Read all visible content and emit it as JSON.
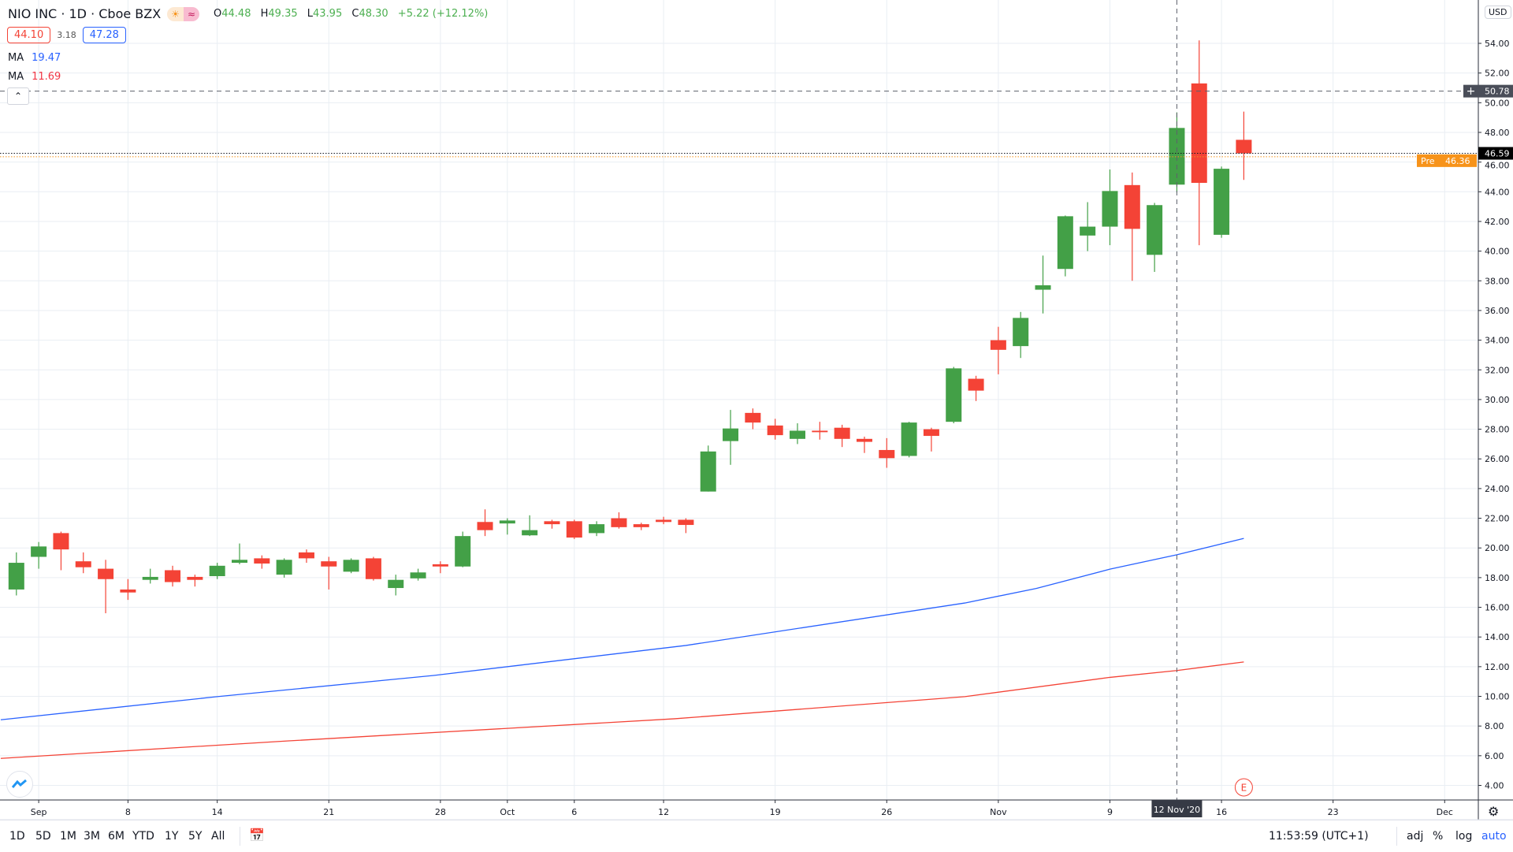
{
  "header": {
    "title": "NIO INC · 1D · Cboe BZX",
    "status_icons": [
      "sun-icon",
      "approx-icon"
    ],
    "ohlc": {
      "o_label": "O",
      "o": "44.48",
      "h_label": "H",
      "h": "49.35",
      "l_label": "L",
      "l": "43.95",
      "c_label": "C",
      "c": "48.30",
      "change": "+5.22 (+12.12%)"
    },
    "bid": "44.10",
    "spread": "3.18",
    "ask": "47.28",
    "ma1": {
      "label": "MA",
      "value": "19.47",
      "color": "#2962ff"
    },
    "ma2": {
      "label": "MA",
      "value": "11.69",
      "color": "#f23645"
    }
  },
  "colors": {
    "up": "#43a047",
    "down": "#f44336",
    "ma1": "#2962ff",
    "ma2": "#f44336",
    "pre": "#f7931a"
  },
  "price_axis": {
    "currency": "USD",
    "ticks": [
      "4.00",
      "6.00",
      "8.00",
      "10.00",
      "12.00",
      "14.00",
      "16.00",
      "18.00",
      "20.00",
      "22.00",
      "24.00",
      "26.00",
      "28.00",
      "30.00",
      "32.00",
      "34.00",
      "36.00",
      "38.00",
      "40.00",
      "42.00",
      "44.00",
      "46.00",
      "48.00",
      "50.00",
      "52.00",
      "54.00"
    ],
    "crosshair_price": "50.78",
    "last_price": "46.59",
    "pre_label": "Pre",
    "pre_price": "46.36"
  },
  "time_axis": {
    "labels": [
      {
        "text": "Sep",
        "bar": 1
      },
      {
        "text": "8",
        "bar": 5
      },
      {
        "text": "14",
        "bar": 9
      },
      {
        "text": "21",
        "bar": 14
      },
      {
        "text": "28",
        "bar": 19
      },
      {
        "text": "Oct",
        "bar": 22
      },
      {
        "text": "6",
        "bar": 25
      },
      {
        "text": "12",
        "bar": 29
      },
      {
        "text": "19",
        "bar": 34
      },
      {
        "text": "26",
        "bar": 39
      },
      {
        "text": "Nov",
        "bar": 44
      },
      {
        "text": "9",
        "bar": 49
      },
      {
        "text": "16",
        "bar": 54
      },
      {
        "text": "23",
        "bar": 59
      },
      {
        "text": "Dec",
        "bar": 64
      }
    ],
    "crosshair_label": "12 Nov '20",
    "crosshair_bar": 52
  },
  "chart_data": {
    "type": "candlestick",
    "ylim": [
      3,
      56
    ],
    "candles": [
      [
        17.2,
        19.7,
        16.8,
        19.0
      ],
      [
        19.4,
        20.4,
        18.6,
        20.1
      ],
      [
        21.0,
        21.1,
        18.5,
        19.9
      ],
      [
        19.1,
        19.7,
        18.3,
        18.7
      ],
      [
        18.6,
        19.2,
        15.6,
        17.9
      ],
      [
        17.2,
        17.9,
        16.5,
        17.0
      ],
      [
        17.85,
        18.6,
        17.6,
        18.05
      ],
      [
        18.5,
        18.8,
        17.4,
        17.7
      ],
      [
        18.05,
        18.2,
        17.4,
        17.85
      ],
      [
        18.1,
        19.0,
        17.9,
        18.8
      ],
      [
        19.0,
        20.3,
        18.9,
        19.2
      ],
      [
        19.3,
        19.5,
        18.6,
        18.95
      ],
      [
        18.2,
        19.3,
        18.0,
        19.2
      ],
      [
        19.7,
        19.9,
        19.0,
        19.3
      ],
      [
        19.1,
        19.4,
        17.2,
        18.75
      ],
      [
        18.4,
        19.3,
        18.3,
        19.2
      ],
      [
        19.3,
        19.4,
        17.8,
        17.9
      ],
      [
        17.3,
        18.2,
        16.8,
        17.85
      ],
      [
        17.95,
        18.6,
        17.8,
        18.35
      ],
      [
        18.9,
        19.1,
        18.3,
        18.75
      ],
      [
        18.75,
        21.1,
        18.7,
        20.8
      ],
      [
        21.75,
        22.6,
        20.8,
        21.2
      ],
      [
        21.65,
        22.0,
        20.9,
        21.85
      ],
      [
        20.85,
        22.2,
        20.8,
        21.2
      ],
      [
        21.8,
        21.9,
        21.3,
        21.6
      ],
      [
        21.8,
        21.9,
        20.6,
        20.7
      ],
      [
        21.0,
        21.8,
        20.8,
        21.6
      ],
      [
        22.0,
        22.4,
        21.3,
        21.4
      ],
      [
        21.6,
        21.7,
        21.2,
        21.4
      ],
      [
        21.9,
        22.1,
        21.6,
        21.75
      ],
      [
        21.9,
        22.0,
        21.0,
        21.55
      ],
      [
        23.8,
        26.9,
        23.8,
        26.5
      ],
      [
        27.2,
        29.3,
        25.6,
        28.05
      ],
      [
        29.1,
        29.4,
        28.0,
        28.45
      ],
      [
        28.25,
        28.7,
        27.3,
        27.6
      ],
      [
        27.35,
        28.4,
        27.0,
        27.9
      ],
      [
        27.9,
        28.5,
        27.3,
        27.8
      ],
      [
        28.1,
        28.3,
        26.8,
        27.35
      ],
      [
        27.35,
        27.5,
        26.4,
        27.15
      ],
      [
        26.6,
        27.4,
        25.4,
        26.05
      ],
      [
        26.2,
        28.5,
        26.1,
        28.45
      ],
      [
        28.0,
        28.1,
        26.5,
        27.55
      ],
      [
        28.5,
        32.2,
        28.4,
        32.1
      ],
      [
        31.4,
        31.6,
        29.9,
        30.6
      ],
      [
        34.0,
        34.9,
        31.7,
        33.35
      ],
      [
        33.6,
        35.9,
        32.8,
        35.5
      ],
      [
        37.4,
        39.7,
        35.8,
        37.7
      ],
      [
        38.8,
        42.4,
        38.3,
        42.35
      ],
      [
        41.05,
        43.3,
        40.0,
        41.65
      ],
      [
        41.65,
        45.5,
        40.4,
        44.05
      ],
      [
        44.45,
        45.3,
        38.0,
        41.5
      ],
      [
        39.75,
        43.25,
        38.6,
        43.1
      ],
      [
        44.48,
        49.35,
        43.95,
        48.3
      ],
      [
        51.3,
        54.2,
        40.4,
        44.6
      ],
      [
        41.1,
        45.7,
        40.9,
        45.55
      ],
      [
        47.5,
        49.4,
        44.8,
        46.59
      ]
    ],
    "candle_fields": [
      "open",
      "high",
      "low",
      "close"
    ],
    "ma_series": [
      {
        "name": "MA",
        "points": [
          [
            -0.7,
            8.42
          ],
          [
            9,
            9.98
          ],
          [
            18.7,
            11.41
          ],
          [
            30,
            13.43
          ],
          [
            42.5,
            16.29
          ],
          [
            45.7,
            17.27
          ],
          [
            49,
            18.57
          ],
          [
            52,
            19.54
          ],
          [
            55,
            20.64
          ]
        ]
      },
      {
        "name": "MA",
        "points": [
          [
            -0.7,
            5.82
          ],
          [
            12.2,
            7.0
          ],
          [
            29.5,
            8.49
          ],
          [
            42.5,
            9.98
          ],
          [
            49,
            11.28
          ],
          [
            52,
            11.74
          ],
          [
            55,
            12.32
          ]
        ]
      }
    ],
    "earnings_marker": {
      "label": "E",
      "bar": 55
    }
  },
  "bottom_bar": {
    "ranges": [
      "1D",
      "5D",
      "1M",
      "3M",
      "6M",
      "YTD",
      "1Y",
      "5Y",
      "All"
    ],
    "clock": "11:53:59 (UTC+1)",
    "toggles": [
      "adj",
      "%",
      "log",
      "auto"
    ]
  }
}
